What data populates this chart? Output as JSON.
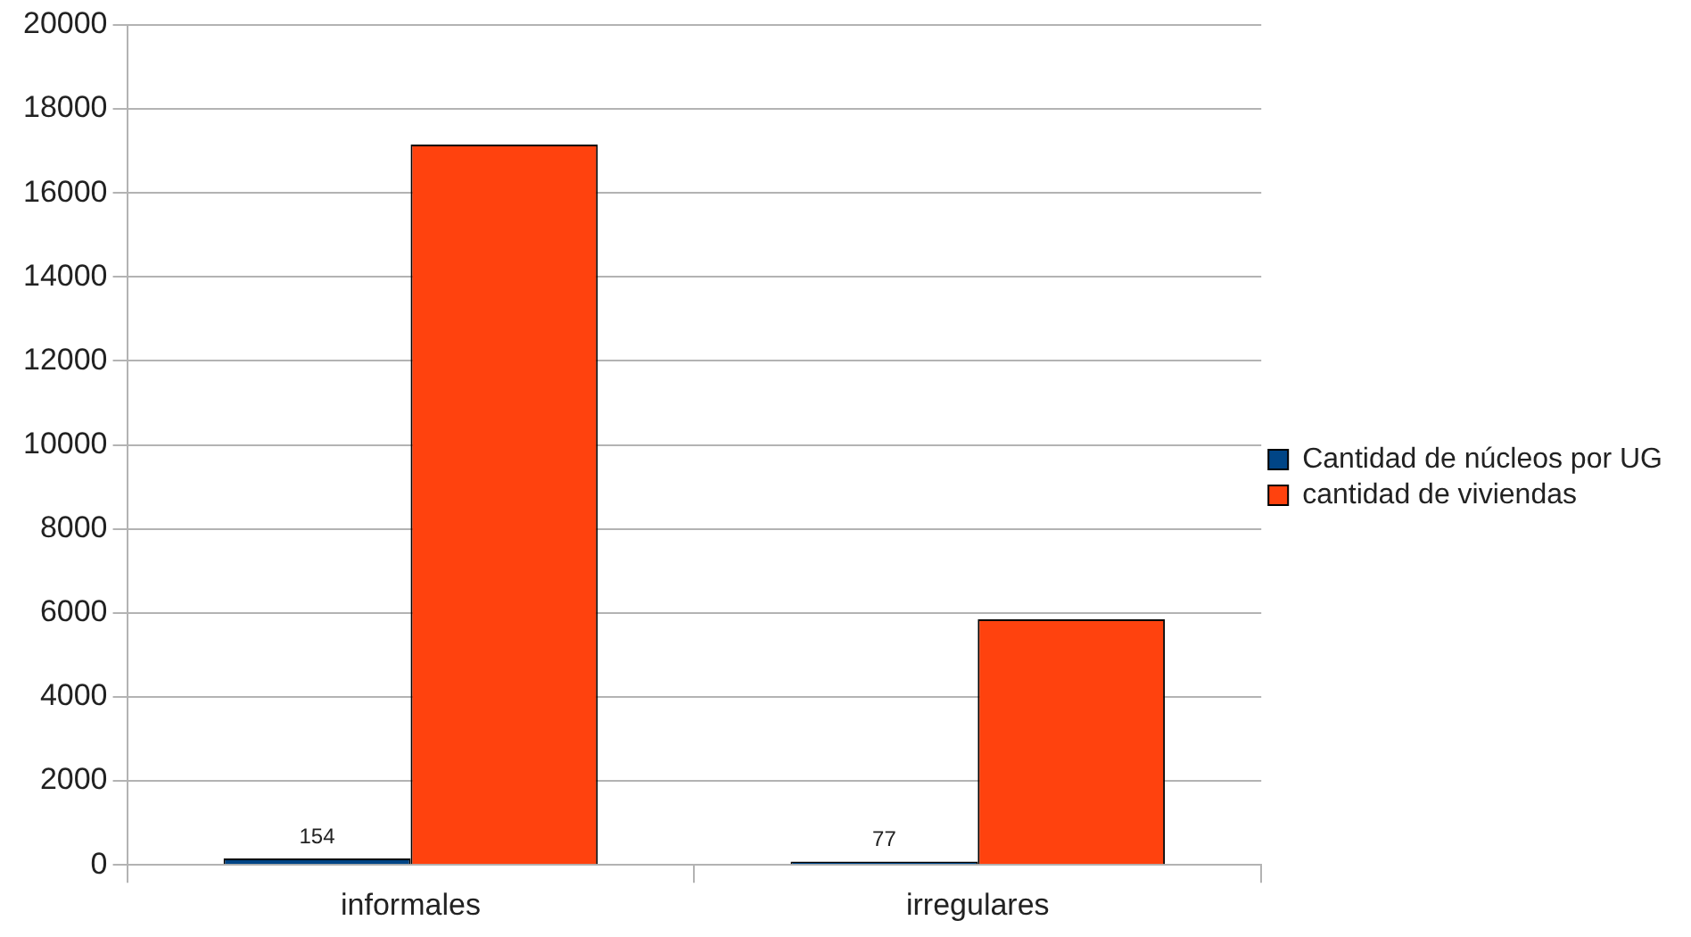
{
  "chart_data": {
    "type": "bar",
    "categories": [
      "informales",
      "irregulares"
    ],
    "series": [
      {
        "name": "Cantidad de núcleos por UG",
        "color": "#004586",
        "values": [
          154,
          77
        ],
        "value_labels": [
          "154",
          "77"
        ]
      },
      {
        "name": "cantidad de viviendas",
        "color": "#ff420e",
        "values": [
          17150,
          5850
        ]
      }
    ],
    "ylim": [
      0,
      20000
    ],
    "yticks": [
      0,
      2000,
      4000,
      6000,
      8000,
      10000,
      12000,
      14000,
      16000,
      18000,
      20000
    ],
    "grid": "y",
    "legend": "right"
  }
}
